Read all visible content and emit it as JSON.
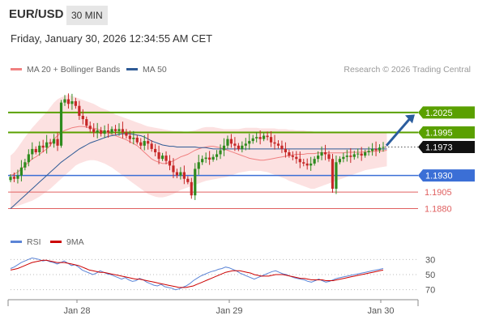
{
  "header": {
    "symbol": "EUR/USD",
    "timeframe": "30 MIN"
  },
  "datetime": "Friday, January 30, 2026 12:34:55 AM CET",
  "credit": "Research © 2026 Trading Central",
  "legend_main": [
    {
      "label": "MA 20 + Bollinger Bands",
      "color": "#f08080"
    },
    {
      "label": "MA 50",
      "color": "#2f5b96"
    }
  ],
  "legend_rsi": [
    {
      "label": "RSI",
      "color": "#5b84d6"
    },
    {
      "label": "9MA",
      "color": "#cc0000"
    }
  ],
  "colors": {
    "up": "#2e8b1e",
    "down": "#c62828",
    "resistance": "#5aa000",
    "pivot": "#3b6fd6",
    "support": "#e06060",
    "bb_fill": "#fbdcdc",
    "ma20": "#f08080",
    "ma50": "#2f5b96",
    "arrow": "#2b5d9e",
    "current_price_bg": "#111111"
  },
  "chart_data": [
    {
      "type": "candlestick",
      "title": "EUR/USD 30 MIN",
      "ylim": [
        1.1855,
        1.2075
      ],
      "x_tick_labels": [
        {
          "label": "Jan 28",
          "bar": 21
        },
        {
          "label": "Jan 29",
          "bar": 69
        },
        {
          "label": "Jan 30",
          "bar": 117
        }
      ],
      "levels": [
        {
          "label": "1.2025",
          "value": 1.2025,
          "kind": "resistance"
        },
        {
          "label": "1.1995",
          "value": 1.1995,
          "kind": "resistance"
        },
        {
          "label": "1.1973",
          "value": 1.1973,
          "kind": "current"
        },
        {
          "label": "1.1930",
          "value": 1.193,
          "kind": "pivot"
        },
        {
          "label": "1.1905",
          "value": 1.1905,
          "kind": "support"
        },
        {
          "label": "1.1880",
          "value": 1.188,
          "kind": "support"
        }
      ],
      "close": [
        1.1928,
        1.1925,
        1.193,
        1.1942,
        1.195,
        1.1962,
        1.197,
        1.1965,
        1.1975,
        1.1972,
        1.198,
        1.1978,
        1.1985,
        1.1975,
        1.204,
        1.2045,
        1.2038,
        1.2042,
        1.2035,
        1.202,
        1.2015,
        1.2005,
        1.2,
        1.1995,
        1.1998,
        1.1993,
        1.1998,
        1.1995,
        1.2,
        1.1997,
        1.2,
        1.1995,
        1.199,
        1.1985,
        1.1987,
        1.198,
        1.1975,
        1.1982,
        1.1978,
        1.197,
        1.1965,
        1.1955,
        1.196,
        1.1952,
        1.1945,
        1.1935,
        1.193,
        1.1935,
        1.1925,
        1.192,
        1.19,
        1.194,
        1.195,
        1.1955,
        1.1957,
        1.1954,
        1.1958,
        1.1962,
        1.1968,
        1.1975,
        1.1985,
        1.1978,
        1.1975,
        1.197,
        1.1975,
        1.1978,
        1.1982,
        1.1986,
        1.1988,
        1.1985,
        1.199,
        1.1988,
        1.198,
        1.1978,
        1.1975,
        1.197,
        1.1965,
        1.196,
        1.1958,
        1.1955,
        1.195,
        1.1948,
        1.1945,
        1.1948,
        1.1955,
        1.196,
        1.1965,
        1.1962,
        1.1955,
        1.191,
        1.195,
        1.1955,
        1.1958,
        1.196,
        1.1958,
        1.1962,
        1.1963,
        1.196,
        1.1965,
        1.1967,
        1.197,
        1.1968,
        1.1972,
        1.1973
      ],
      "series": [
        {
          "name": "MA 20",
          "values": [
            1.193,
            1.1932,
            1.1935,
            1.194,
            1.1945,
            1.195,
            1.1955,
            1.1958,
            1.1962,
            1.1966,
            1.197,
            1.1975,
            1.1985,
            1.199,
            1.1995,
            1.1998,
            1.2,
            1.2002,
            1.2003,
            1.2004,
            1.2004,
            1.2003,
            1.2002,
            1.2001,
            1.2,
            1.1998,
            1.1996,
            1.1994,
            1.1992,
            1.199,
            1.1988,
            1.1986,
            1.1984,
            1.1981,
            1.1978,
            1.1975,
            1.197,
            1.1965,
            1.196,
            1.1955,
            1.1952,
            1.195,
            1.1948,
            1.1948,
            1.195,
            1.1952,
            1.1955,
            1.1958,
            1.196,
            1.1962,
            1.1965,
            1.1968,
            1.197,
            1.1972,
            1.1973,
            1.1974,
            1.1974,
            1.1973,
            1.1972,
            1.197,
            1.1968,
            1.1966,
            1.1964,
            1.1962,
            1.196,
            1.1958,
            1.1956,
            1.1955,
            1.1954,
            1.1953,
            1.1953,
            1.1954,
            1.1955,
            1.1956,
            1.1957,
            1.1958,
            1.1959,
            1.196,
            1.1961,
            1.1962,
            1.1962,
            1.1962,
            1.1963,
            1.1963,
            1.1963,
            1.1964,
            1.1964,
            1.1964,
            1.1964,
            1.1964,
            1.1964,
            1.1964,
            1.1964,
            1.1965,
            1.1965,
            1.1965,
            1.1965,
            1.1965,
            1.1966,
            1.1966,
            1.1966,
            1.1967,
            1.1967,
            1.1967,
            1.1968
          ]
        },
        {
          "name": "MA 50",
          "values": [
            1.188,
            1.1885,
            1.189,
            1.1895,
            1.19,
            1.1905,
            1.191,
            1.1915,
            1.192,
            1.1925,
            1.193,
            1.1935,
            1.194,
            1.1945,
            1.195,
            1.1954,
            1.1958,
            1.1962,
            1.1966,
            1.197,
            1.1973,
            1.1976,
            1.1979,
            1.1981,
            1.1983,
            1.1985,
            1.1987,
            1.1989,
            1.199,
            1.1991,
            1.1992,
            1.1993,
            1.1993,
            1.1993,
            1.1992,
            1.1991,
            1.199,
            1.1988,
            1.1985,
            1.1982,
            1.198,
            1.1978,
            1.1976,
            1.1975,
            1.1974,
            1.1974,
            1.1973,
            1.1973,
            1.1973,
            1.1973,
            1.1973,
            1.1973,
            1.1972,
            1.1972,
            1.1972,
            1.1971,
            1.197,
            1.197,
            1.197,
            1.197,
            1.197,
            1.197,
            1.197,
            1.197,
            1.197,
            1.197,
            1.197,
            1.197,
            1.197,
            1.197,
            1.197,
            1.197,
            1.197,
            1.197,
            1.197,
            1.197,
            1.197,
            1.197,
            1.197,
            1.197,
            1.197,
            1.197,
            1.197,
            1.197,
            1.197,
            1.197,
            1.197,
            1.197,
            1.197,
            1.197,
            1.197,
            1.197,
            1.197,
            1.197,
            1.197,
            1.197,
            1.197,
            1.197,
            1.197,
            1.197,
            1.197,
            1.197,
            1.197,
            1.197,
            1.197
          ]
        },
        {
          "name": "BB Upper",
          "values": [
            1.196,
            1.1965,
            1.1972,
            1.198,
            1.1988,
            1.1995,
            1.2002,
            1.2008,
            1.2014,
            1.202,
            1.2026,
            1.2033,
            1.204,
            1.2045,
            1.2048,
            1.205,
            1.2052,
            1.205,
            1.2048,
            1.2046,
            1.2044,
            1.2042,
            1.204,
            1.2038,
            1.2035,
            1.2032,
            1.203,
            1.2028,
            1.2025,
            1.2022,
            1.202,
            1.2018,
            1.2016,
            1.2014,
            1.2012,
            1.201,
            1.2008,
            1.2006,
            1.2004,
            1.2003,
            1.2002,
            1.2001,
            1.2,
            1.1999,
            1.1998,
            1.1997,
            1.1997,
            1.1997,
            1.1996,
            1.1996,
            1.1997,
            1.1998,
            1.2,
            1.2002,
            1.2003,
            1.2003,
            1.2003,
            1.2002,
            1.2001,
            1.2,
            1.2,
            1.2,
            1.2,
            1.2,
            1.2001,
            1.2002,
            1.2002,
            1.2002,
            1.2002,
            1.2001,
            1.2001,
            1.2001,
            1.2001,
            1.2001,
            1.2,
            1.2,
            1.2,
            1.1999,
            1.1999,
            1.1998,
            1.1998,
            1.1998,
            1.1997,
            1.1997,
            1.1996,
            1.1996,
            1.1995,
            1.1995,
            1.1995,
            1.1995,
            1.1995,
            1.1995,
            1.1995,
            1.1995,
            1.1995,
            1.1995,
            1.1995,
            1.1995,
            1.1995,
            1.1995,
            1.1995,
            1.1995,
            1.1995,
            1.1995,
            1.1995
          ]
        },
        {
          "name": "BB Lower",
          "values": [
            1.188,
            1.1882,
            1.1884,
            1.1886,
            1.1888,
            1.189,
            1.1892,
            1.1895,
            1.1898,
            1.1902,
            1.1906,
            1.191,
            1.1915,
            1.192,
            1.1925,
            1.193,
            1.1935,
            1.194,
            1.1945,
            1.1948,
            1.195,
            1.1952,
            1.1953,
            1.1953,
            1.1952,
            1.195,
            1.1948,
            1.1945,
            1.1942,
            1.1938,
            1.1934,
            1.193,
            1.1926,
            1.1922,
            1.1918,
            1.1914,
            1.191,
            1.1906,
            1.1902,
            1.19,
            1.1898,
            1.1897,
            1.1897,
            1.1898,
            1.19,
            1.1902,
            1.1905,
            1.1908,
            1.191,
            1.1912,
            1.1914,
            1.1916,
            1.1918,
            1.192,
            1.1922,
            1.1923,
            1.1924,
            1.1925,
            1.1926,
            1.1927,
            1.1928,
            1.193,
            1.1932,
            1.1934,
            1.1935,
            1.1936,
            1.1937,
            1.1937,
            1.1937,
            1.1937,
            1.1936,
            1.1935,
            1.1933,
            1.1931,
            1.1929,
            1.1927,
            1.1925,
            1.1922,
            1.192,
            1.1918,
            1.1916,
            1.1914,
            1.1912,
            1.191,
            1.191,
            1.1912,
            1.1914,
            1.1916,
            1.1918,
            1.192,
            1.1922,
            1.1924,
            1.1926,
            1.1928,
            1.193,
            1.1932,
            1.1934,
            1.1936,
            1.1938,
            1.1939,
            1.194,
            1.1941,
            1.1942,
            1.1943,
            1.1944
          ]
        }
      ]
    },
    {
      "type": "line",
      "title": "RSI",
      "ylim": [
        20,
        80
      ],
      "y_ticks": [
        30,
        50,
        70
      ],
      "series": [
        {
          "name": "RSI",
          "values": [
            58,
            60,
            63,
            66,
            68,
            70,
            72,
            71,
            70,
            68,
            69,
            67,
            66,
            64,
            66,
            68,
            65,
            62,
            63,
            60,
            56,
            54,
            52,
            50,
            52,
            55,
            53,
            51,
            50,
            48,
            46,
            44,
            46,
            43,
            41,
            42,
            45,
            43,
            40,
            38,
            36,
            35,
            37,
            34,
            33,
            32,
            30,
            31,
            33,
            35,
            38,
            42,
            45,
            48,
            50,
            52,
            54,
            55,
            57,
            58,
            60,
            59,
            57,
            55,
            52,
            50,
            48,
            46,
            44,
            46,
            48,
            50,
            52,
            54,
            55,
            53,
            51,
            50,
            48,
            46,
            45,
            44,
            43,
            41,
            40,
            42,
            44,
            42,
            40,
            41,
            43,
            45,
            46,
            47,
            48,
            49,
            50,
            51,
            52,
            53,
            54,
            55,
            56,
            57,
            58
          ]
        },
        {
          "name": "9MA",
          "values": [
            56,
            57,
            58,
            60,
            62,
            64,
            66,
            67,
            68,
            69,
            69,
            68,
            67,
            66,
            66,
            66,
            65,
            64,
            63,
            62,
            60,
            58,
            56,
            55,
            54,
            53,
            53,
            52,
            51,
            50,
            49,
            48,
            47,
            46,
            45,
            44,
            44,
            43,
            42,
            41,
            40,
            39,
            38,
            37,
            36,
            35,
            34,
            33,
            33,
            33,
            34,
            35,
            37,
            39,
            41,
            43,
            45,
            47,
            49,
            51,
            53,
            54,
            55,
            55,
            55,
            54,
            53,
            52,
            50,
            49,
            48,
            48,
            48,
            49,
            50,
            50,
            50,
            49,
            48,
            47,
            46,
            45,
            45,
            44,
            43,
            43,
            43,
            43,
            42,
            42,
            42,
            43,
            44,
            45,
            46,
            47,
            48,
            49,
            50,
            51,
            52,
            53,
            54,
            55,
            56
          ]
        }
      ]
    }
  ],
  "rsi_axis_labels": [
    "70",
    "50",
    "30"
  ],
  "x_labels": [
    "Jan 28",
    "Jan 29",
    "Jan 30"
  ]
}
